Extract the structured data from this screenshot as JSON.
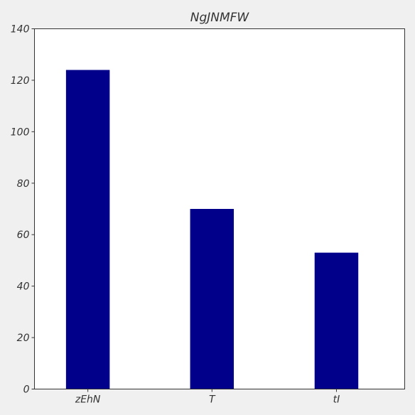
{
  "colors": {
    "background": "#f0f0f0",
    "plot_area": "#ffffff",
    "bar": "#00008b",
    "axis": "#333333",
    "text": "#333333"
  },
  "chart_data": {
    "type": "bar",
    "title": "NgJNMFW",
    "xlabel": "",
    "ylabel": "",
    "categories": [
      "zEhN",
      "T",
      "tI"
    ],
    "values": [
      124,
      70,
      53
    ],
    "ylim": [
      0,
      140
    ],
    "yticks": [
      0,
      20,
      40,
      60,
      80,
      100,
      120,
      140
    ],
    "grid": false,
    "legend": "none"
  }
}
